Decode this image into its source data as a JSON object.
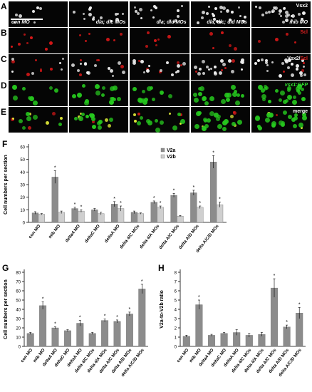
{
  "panels": {
    "A": {
      "letter": "A",
      "labels": [
        "con MO",
        "dla; dlc MOs",
        "dla; dld MOs",
        "dla; dlc; dld MOs",
        "mib MO"
      ],
      "marker": "Vsx2"
    },
    "B": {
      "letter": "B",
      "marker": "Scl"
    },
    "C": {
      "letter": "C",
      "marker_a": "Vsx2",
      "marker_sep": "/",
      "marker_b": "Scl"
    },
    "D": {
      "letter": "D",
      "marker": "vsx1:GFP"
    },
    "E": {
      "letter": "E",
      "marker": "merge"
    }
  },
  "colors": {
    "dot_white": "#f2f2f2",
    "dot_red": "#d81818",
    "dot_green": "#26c81e",
    "dot_yellow": "#e6f03a",
    "bar_dark": "#8c8c8c",
    "bar_light": "#cfcfcf"
  },
  "chart_data": [
    {
      "panel": "F",
      "type": "bar",
      "ylabel": "Cell numbers per section",
      "ylim": [
        0,
        60
      ],
      "yticks": [
        0,
        10,
        20,
        30,
        40,
        50,
        60
      ],
      "categories": [
        "con MO",
        "mib MO",
        "delta4 MO",
        "deltaC MO",
        "deltaA MO",
        "delta 4/C MOs",
        "delta 4/A MOs",
        "delta A/C MOs",
        "delta A/D MOs",
        "delta A/C/D MOs"
      ],
      "series": [
        {
          "name": "V2a",
          "values": [
            7.5,
            36,
            11,
            10,
            14.5,
            8,
            16,
            21.5,
            23.5,
            48
          ],
          "errors": [
            1,
            5,
            1,
            1,
            2,
            1,
            1,
            1.5,
            2,
            5
          ]
        },
        {
          "name": "V2b",
          "values": [
            6.5,
            8,
            9,
            7,
            11,
            7,
            12,
            5,
            12,
            14
          ],
          "errors": [
            0.5,
            1,
            1,
            1,
            2,
            0.5,
            1,
            0.5,
            1,
            2
          ]
        }
      ],
      "stars_v2a": [
        "",
        "*",
        "*",
        "",
        "*",
        "",
        "*",
        "*",
        "*",
        "*"
      ],
      "stars_v2b": [
        "",
        "",
        "*",
        "",
        "*",
        "",
        "*",
        "",
        "*",
        "*"
      ],
      "legend": "top-right"
    },
    {
      "panel": "G",
      "type": "bar",
      "ylabel": "Cell numbers per section",
      "ylim": [
        0,
        80
      ],
      "yticks": [
        0,
        10,
        20,
        30,
        40,
        50,
        60,
        70,
        80
      ],
      "categories": [
        "con MO",
        "mib MO",
        "delta4 MO",
        "deltaC MO",
        "deltaA MO",
        "delta 4/C MOs",
        "delta 4/A MOs",
        "delta A/C MOs",
        "delta A/D MOs",
        "delta A/C/D MOs"
      ],
      "values": [
        14,
        44,
        20,
        17,
        25,
        14,
        28,
        27,
        35,
        62
      ],
      "errors": [
        1,
        4,
        1,
        1,
        3,
        1,
        1.5,
        1.5,
        2,
        5
      ],
      "stars": [
        "",
        "*",
        "*",
        "",
        "*",
        "",
        "*",
        "*",
        "*",
        "*"
      ]
    },
    {
      "panel": "H",
      "type": "bar",
      "ylabel": "V2a-to-V2b ratio",
      "ylim": [
        0,
        8
      ],
      "yticks": [
        0,
        1,
        2,
        3,
        4,
        5,
        6,
        7,
        8
      ],
      "categories": [
        "con MO",
        "mib MO",
        "delta4 MO",
        "deltaC MO",
        "deltaA MO",
        "delta 4/C MOs",
        "delta 4/A MOs",
        "delta A/C MOs",
        "delta A/D MOs",
        "delta A/C/D MOs"
      ],
      "values": [
        1.1,
        4.5,
        1.2,
        1.4,
        1.5,
        1.2,
        1.3,
        6.3,
        2.1,
        3.6
      ],
      "errors": [
        0.1,
        0.5,
        0.1,
        0.1,
        0.3,
        0.2,
        0.2,
        1.0,
        0.2,
        0.6
      ],
      "stars": [
        "",
        "*",
        "",
        "",
        "",
        "",
        "",
        "*",
        "*",
        "*"
      ]
    }
  ]
}
